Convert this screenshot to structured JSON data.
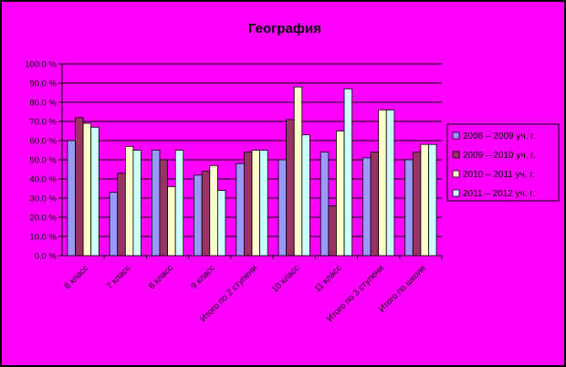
{
  "chart_data": {
    "type": "bar",
    "title": "География",
    "xlabel": "",
    "ylabel": "",
    "ylim": [
      0,
      100
    ],
    "y_ticks": [
      "0.0 %",
      "10.0 %",
      "20.0 %",
      "30.0 %",
      "40.0 %",
      "50.0 %",
      "60.0 %",
      "70.0 %",
      "80.0 %",
      "90.0 %",
      "100.0 %"
    ],
    "grid": true,
    "legend_position": "right",
    "categories": [
      "6 класс",
      "7 класс",
      "8 класс",
      "9 класс",
      "Итого по 2 ступени",
      "10 класс",
      "11 класс",
      "Итого по 3 ступени",
      "Итого по школе"
    ],
    "series": [
      {
        "name": "2008 – 2009 уч. г.",
        "color": "#9999ff",
        "values": [
          60,
          33,
          55,
          42,
          48,
          50,
          54,
          51,
          50
        ]
      },
      {
        "name": "2009 – 2010 уч. г.",
        "color": "#993366",
        "values": [
          72,
          43,
          50,
          44,
          54,
          71,
          26,
          54,
          54
        ]
      },
      {
        "name": "2010 – 2011 уч. г.",
        "color": "#ffffcc",
        "values": [
          69,
          57,
          36,
          47,
          55,
          88,
          65,
          76,
          58
        ]
      },
      {
        "name": "2011 – 2012 уч. г.",
        "color": "#ccffff",
        "values": [
          67,
          55,
          55,
          34,
          55,
          63,
          87,
          76,
          58
        ]
      }
    ]
  }
}
